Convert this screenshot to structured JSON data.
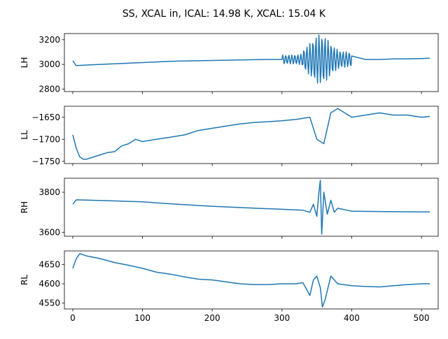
{
  "title": "SS, XCAL in, ICAL: 14.98 K, XCAL: 15.04 K",
  "line_color": "#1f77b4",
  "chart_data": [
    {
      "type": "line",
      "ylabel": "LH",
      "xlim": [
        -12,
        524
      ],
      "ylim": [
        2780,
        3250
      ],
      "yticks": [
        2800,
        3000,
        3200
      ],
      "x": [
        0,
        5,
        20,
        40,
        60,
        80,
        100,
        120,
        140,
        160,
        180,
        200,
        220,
        240,
        260,
        280,
        300,
        320,
        340,
        350,
        355,
        360,
        370,
        380,
        400,
        420,
        440,
        460,
        480,
        500,
        512
      ],
      "y": [
        3030,
        2990,
        2995,
        3000,
        3005,
        3010,
        3015,
        3020,
        3025,
        3028,
        3030,
        3032,
        3034,
        3036,
        3038,
        3040,
        3042,
        3045,
        3050,
        3200,
        2810,
        3150,
        3100,
        3080,
        3040,
        3040,
        3040,
        3045,
        3045,
        3048,
        3050
      ],
      "oscillation": {
        "x_start": 300,
        "x_center": 355,
        "x_end": 400,
        "amplitude": 200,
        "baseline": 3040
      }
    },
    {
      "type": "line",
      "ylabel": "LL",
      "xlim": [
        -12,
        524
      ],
      "ylim": [
        -1755,
        -1625
      ],
      "yticks": [
        -1750,
        -1700,
        -1650
      ],
      "x": [
        0,
        5,
        10,
        15,
        20,
        30,
        40,
        50,
        60,
        70,
        80,
        90,
        100,
        120,
        140,
        160,
        180,
        200,
        220,
        240,
        260,
        280,
        300,
        320,
        340,
        350,
        360,
        370,
        380,
        400,
        420,
        440,
        460,
        480,
        500,
        512
      ],
      "y": [
        -1690,
        -1720,
        -1740,
        -1745,
        -1745,
        -1740,
        -1735,
        -1730,
        -1728,
        -1715,
        -1710,
        -1700,
        -1705,
        -1700,
        -1695,
        -1690,
        -1680,
        -1675,
        -1670,
        -1665,
        -1662,
        -1660,
        -1658,
        -1655,
        -1650,
        -1700,
        -1710,
        -1640,
        -1630,
        -1650,
        -1645,
        -1640,
        -1645,
        -1645,
        -1650,
        -1648
      ],
      "oscillation": null
    },
    {
      "type": "line",
      "ylabel": "RH",
      "xlim": [
        -12,
        524
      ],
      "ylim": [
        3580,
        3870
      ],
      "yticks": [
        3600,
        3800
      ],
      "x": [
        0,
        5,
        50,
        100,
        150,
        200,
        250,
        300,
        330,
        340,
        345,
        350,
        353,
        355,
        357,
        360,
        365,
        370,
        375,
        380,
        400,
        450,
        500,
        512
      ],
      "y": [
        3740,
        3762,
        3758,
        3752,
        3740,
        3730,
        3722,
        3715,
        3710,
        3700,
        3740,
        3680,
        3800,
        3860,
        3590,
        3800,
        3690,
        3760,
        3700,
        3720,
        3705,
        3703,
        3702,
        3702
      ],
      "oscillation": null
    },
    {
      "type": "line",
      "ylabel": "RL",
      "xlim": [
        -12,
        524
      ],
      "ylim": [
        4535,
        4685
      ],
      "yticks": [
        4550,
        4600,
        4650
      ],
      "x": [
        0,
        5,
        10,
        20,
        40,
        60,
        80,
        100,
        120,
        140,
        160,
        180,
        200,
        220,
        240,
        260,
        280,
        300,
        320,
        330,
        340,
        345,
        350,
        355,
        358,
        362,
        370,
        380,
        400,
        420,
        440,
        460,
        480,
        500,
        512
      ],
      "y": [
        4640,
        4665,
        4678,
        4672,
        4665,
        4655,
        4648,
        4640,
        4630,
        4625,
        4618,
        4612,
        4610,
        4605,
        4600,
        4598,
        4598,
        4600,
        4600,
        4603,
        4570,
        4610,
        4620,
        4590,
        4540,
        4560,
        4620,
        4600,
        4595,
        4593,
        4592,
        4595,
        4598,
        4600,
        4600
      ],
      "oscillation": null
    }
  ],
  "xticks": [
    0,
    100,
    200,
    300,
    400,
    500
  ]
}
